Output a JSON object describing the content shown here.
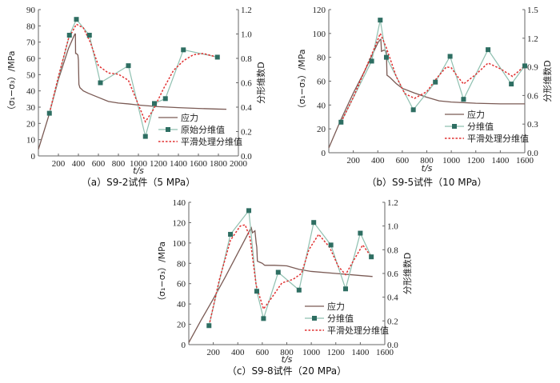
{
  "colors": {
    "stress": "#7a5a54",
    "fractal": "#8fc0b0",
    "fractal_marker": "#2e6e62",
    "smooth": "#e03030"
  },
  "chart_data": [
    {
      "type": "line",
      "id": "a",
      "caption": "（a）S9-2试件（5 MPa）",
      "xlabel": "t/s",
      "ylabel_left": "（σ₁−σ₃）/MPa",
      "ylabel_right": "分形维数D",
      "xlim": [
        0,
        2000
      ],
      "ylim_left": [
        0,
        90
      ],
      "ylim_right": [
        0,
        1.2
      ],
      "xticks": [
        200,
        400,
        600,
        800,
        1000,
        1200,
        1400,
        1600,
        1800,
        2000
      ],
      "yticks_left": [
        0,
        10,
        20,
        30,
        40,
        50,
        60,
        70,
        80,
        90
      ],
      "yticks_right": [
        "0.0",
        "0.2",
        "0.4",
        "0.6",
        "0.8",
        "1.0",
        "1.2"
      ],
      "legend": [
        "应力",
        "原始分维值",
        "平滑处理分维值"
      ],
      "legend_position": "bottom-right",
      "series": [
        {
          "name": "应力",
          "axis": "left",
          "x": [
            0,
            100,
            200,
            300,
            350,
            365,
            370,
            372,
            380,
            395,
            400,
            405,
            415,
            450,
            500,
            600,
            700,
            800,
            900,
            1000,
            1100,
            1200,
            1400,
            1600,
            1800,
            1880
          ],
          "y": [
            4,
            24,
            47,
            66,
            73,
            75,
            75,
            63,
            63,
            62,
            59,
            44,
            42,
            40,
            38.5,
            36,
            33.5,
            32.5,
            32,
            31.3,
            30.8,
            30.3,
            29.7,
            29.2,
            28.8,
            28.7
          ]
        },
        {
          "name": "原始分维值",
          "axis": "right",
          "x": [
            110,
            310,
            380,
            510,
            620,
            900,
            1070,
            1160,
            1270,
            1450,
            1790
          ],
          "y": [
            0.35,
            0.99,
            1.12,
            0.99,
            0.6,
            0.74,
            0.16,
            0.43,
            0.47,
            0.87,
            0.81
          ]
        },
        {
          "name": "平滑处理分维值",
          "axis": "right",
          "x": [
            110,
            200,
            300,
            380,
            450,
            520,
            600,
            700,
            800,
            900,
            1000,
            1070,
            1150,
            1250,
            1350,
            1450,
            1550,
            1650,
            1790
          ],
          "y": [
            0.35,
            0.65,
            0.96,
            1.08,
            1.05,
            0.93,
            0.74,
            0.68,
            0.67,
            0.62,
            0.42,
            0.28,
            0.38,
            0.55,
            0.7,
            0.78,
            0.83,
            0.84,
            0.81
          ]
        }
      ]
    },
    {
      "type": "line",
      "id": "b",
      "caption": "（b）S9-5试件（10 MPa）",
      "xlabel": "t/s",
      "ylabel_left": "（σ₁−σ₃）/MPa",
      "ylabel_right": "分形维数D",
      "xlim": [
        0,
        1600
      ],
      "ylim_left": [
        0,
        120
      ],
      "ylim_right": [
        0,
        1.5
      ],
      "xticks": [
        200,
        400,
        600,
        800,
        1000,
        1200,
        1400,
        1600
      ],
      "yticks_left": [
        0,
        20,
        40,
        60,
        80,
        100,
        120
      ],
      "yticks_right": [
        "0.0",
        "0.3",
        "0.6",
        "0.9",
        "1.2",
        "1.5"
      ],
      "legend": [
        "应力",
        "分维值",
        "平滑处理分维值"
      ],
      "legend_position": "bottom-right",
      "series": [
        {
          "name": "应力",
          "axis": "left",
          "x": [
            0,
            100,
            200,
            300,
            400,
            420,
            425,
            430,
            450,
            470,
            475,
            500,
            550,
            600,
            700,
            800,
            900,
            1000,
            1200,
            1400,
            1600
          ],
          "y": [
            4,
            28,
            50,
            70,
            92,
            95,
            95,
            85,
            86,
            85,
            65,
            63,
            58,
            54,
            50,
            46.5,
            43.5,
            42.5,
            41.5,
            41,
            41
          ]
        },
        {
          "name": "分维值",
          "axis": "right",
          "x": [
            100,
            350,
            420,
            470,
            690,
            870,
            990,
            1100,
            1300,
            1490,
            1600
          ],
          "y": [
            0.32,
            0.96,
            1.39,
            1.0,
            0.45,
            0.74,
            1.01,
            0.56,
            1.08,
            0.72,
            0.91
          ]
        },
        {
          "name": "平滑处理分维值",
          "axis": "right",
          "x": [
            100,
            200,
            300,
            380,
            420,
            470,
            550,
            620,
            700,
            800,
            880,
            960,
            1000,
            1050,
            1100,
            1200,
            1300,
            1400,
            1500,
            1600
          ],
          "y": [
            0.32,
            0.58,
            0.88,
            1.12,
            1.25,
            1.1,
            0.8,
            0.62,
            0.57,
            0.64,
            0.78,
            0.9,
            0.89,
            0.8,
            0.72,
            0.82,
            0.94,
            0.88,
            0.8,
            0.91
          ]
        }
      ]
    },
    {
      "type": "line",
      "id": "c",
      "caption": "（c）S9-8试件（20 MPa）",
      "xlabel": "t/s",
      "ylabel_left": "（σ₁−σ₃）/MPa",
      "ylabel_right": "分形维数D",
      "xlim": [
        0,
        1600
      ],
      "ylim_left": [
        0,
        140
      ],
      "ylim_right": [
        0,
        1.2
      ],
      "xticks": [
        200,
        400,
        600,
        800,
        1000,
        1200,
        1400,
        1600
      ],
      "yticks_left": [
        0,
        20,
        40,
        60,
        80,
        100,
        120,
        140
      ],
      "yticks_right": [
        "0.0",
        "0.2",
        "0.4",
        "0.6",
        "0.8",
        "1.0",
        "1.2"
      ],
      "legend": [
        "应力",
        "分维值",
        "平滑处理分维值"
      ],
      "legend_position": "bottom-right",
      "series": [
        {
          "name": "应力",
          "axis": "left",
          "x": [
            0,
            100,
            200,
            300,
            400,
            500,
            510,
            520,
            540,
            550,
            555,
            560,
            580,
            600,
            620,
            700,
            800,
            900,
            1000,
            1200,
            1400,
            1500
          ],
          "y": [
            2,
            24,
            45,
            67,
            90,
            113,
            115,
            110,
            112,
            100,
            96,
            82,
            81,
            80,
            78,
            78,
            77.5,
            74,
            72,
            70,
            68,
            67
          ]
        },
        {
          "name": "分维值",
          "axis": "right",
          "x": [
            165,
            340,
            490,
            555,
            610,
            730,
            900,
            1020,
            1160,
            1280,
            1400,
            1490
          ],
          "y": [
            0.16,
            0.93,
            1.13,
            0.45,
            0.22,
            0.61,
            0.46,
            1.03,
            0.84,
            0.47,
            0.94,
            0.74
          ]
        },
        {
          "name": "平滑处理分维值",
          "axis": "right",
          "x": [
            165,
            250,
            340,
            420,
            460,
            500,
            550,
            610,
            680,
            760,
            850,
            920,
            980,
            1060,
            1150,
            1220,
            1280,
            1340,
            1420,
            1490
          ],
          "y": [
            0.16,
            0.55,
            0.88,
            1.0,
            1.01,
            0.9,
            0.5,
            0.3,
            0.4,
            0.52,
            0.55,
            0.6,
            0.8,
            0.93,
            0.82,
            0.66,
            0.59,
            0.7,
            0.84,
            0.74
          ]
        }
      ]
    }
  ]
}
